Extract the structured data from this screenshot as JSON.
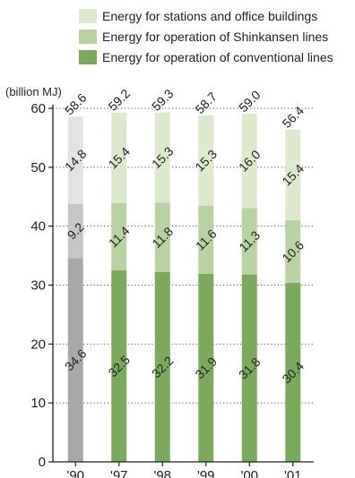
{
  "chart_data": {
    "type": "bar",
    "stacked": true,
    "categories": [
      "'90",
      "'97",
      "'98",
      "'99",
      "'00",
      "'01"
    ],
    "series": [
      {
        "name": "Energy for operation of conventional lines",
        "values": [
          34.6,
          32.5,
          32.2,
          31.9,
          31.8,
          30.4
        ]
      },
      {
        "name": "Energy for operation of Shinkansen lines",
        "values": [
          9.2,
          11.4,
          11.8,
          11.6,
          11.3,
          10.6
        ]
      },
      {
        "name": "Energy for stations and office buildings",
        "values": [
          14.8,
          15.4,
          15.3,
          15.3,
          16.0,
          15.4
        ]
      }
    ],
    "totals": [
      58.6,
      59.2,
      59.3,
      58.7,
      59.0,
      56.4
    ],
    "ylabel": "(billion MJ)",
    "ylim": [
      0,
      60
    ],
    "yticks": [
      0,
      10,
      20,
      30,
      40,
      50,
      60
    ],
    "grid": "dotted horizontal",
    "legend_position": "top",
    "colors": {
      "conventional": "#7aab5a",
      "shinkansen": "#b9d3a0",
      "stations": "#dde9cd",
      "baseline_conventional": "#a8a8a8",
      "baseline_shinkansen": "#c6c6c6",
      "baseline_stations": "#e3e3e3"
    }
  },
  "legend": [
    {
      "label": "Energy for stations and office buildings",
      "color": "#dde9cd"
    },
    {
      "label": "Energy for operation of Shinkansen lines",
      "color": "#b9d3a0"
    },
    {
      "label": "Energy for operation of conventional lines",
      "color": "#7aab5a"
    }
  ]
}
